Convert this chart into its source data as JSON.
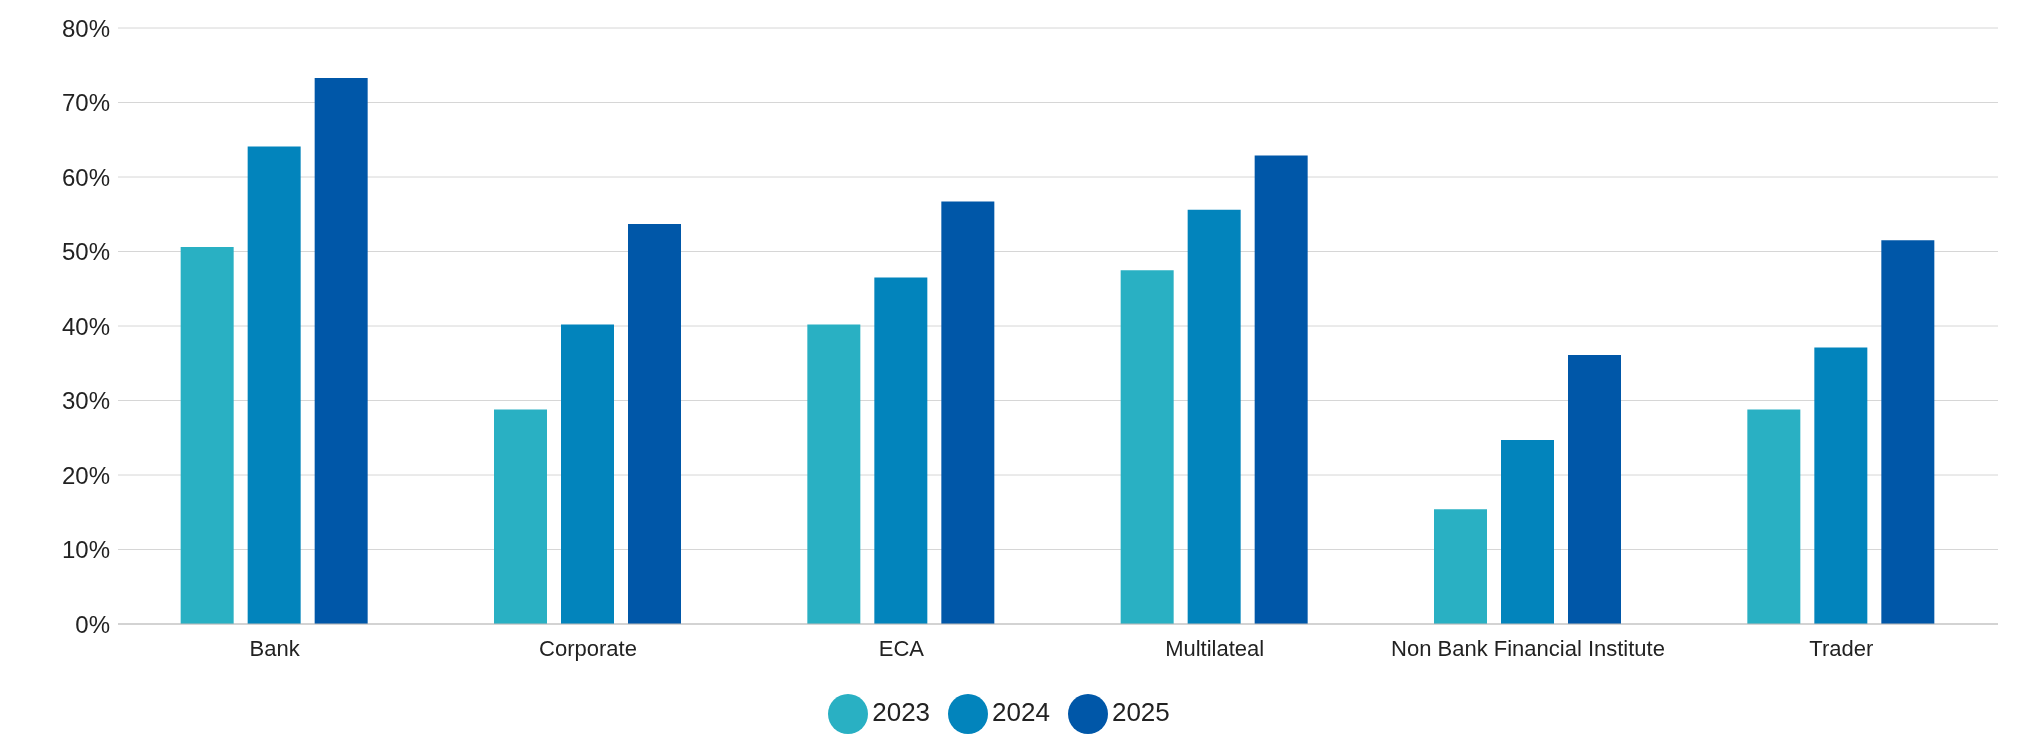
{
  "chart_data": {
    "type": "bar",
    "categories": [
      "Bank",
      "Corporate",
      "ECA",
      "Multilateal",
      "Non Bank Financial Institute",
      "Trader"
    ],
    "series": [
      {
        "name": "2023",
        "color": "#29b0c3",
        "values": [
          50.6,
          28.8,
          40.2,
          47.5,
          15.4,
          28.8
        ]
      },
      {
        "name": "2024",
        "color": "#0284bc",
        "values": [
          64.1,
          40.2,
          46.5,
          55.6,
          24.7,
          37.1
        ]
      },
      {
        "name": "2025",
        "color": "#0057a8",
        "values": [
          73.3,
          53.7,
          56.7,
          62.9,
          36.1,
          51.5
        ]
      }
    ],
    "ylim": [
      0,
      80
    ],
    "yticks": [
      {
        "value": 0,
        "label": "0%"
      },
      {
        "value": 10,
        "label": "10%"
      },
      {
        "value": 20,
        "label": "20%"
      },
      {
        "value": 30,
        "label": "30%"
      },
      {
        "value": 40,
        "label": "40%"
      },
      {
        "value": 50,
        "label": "50%"
      },
      {
        "value": 60,
        "label": "60%"
      },
      {
        "value": 70,
        "label": "70%"
      },
      {
        "value": 80,
        "label": "80%"
      }
    ],
    "grid": "y",
    "legend": "bottom"
  }
}
